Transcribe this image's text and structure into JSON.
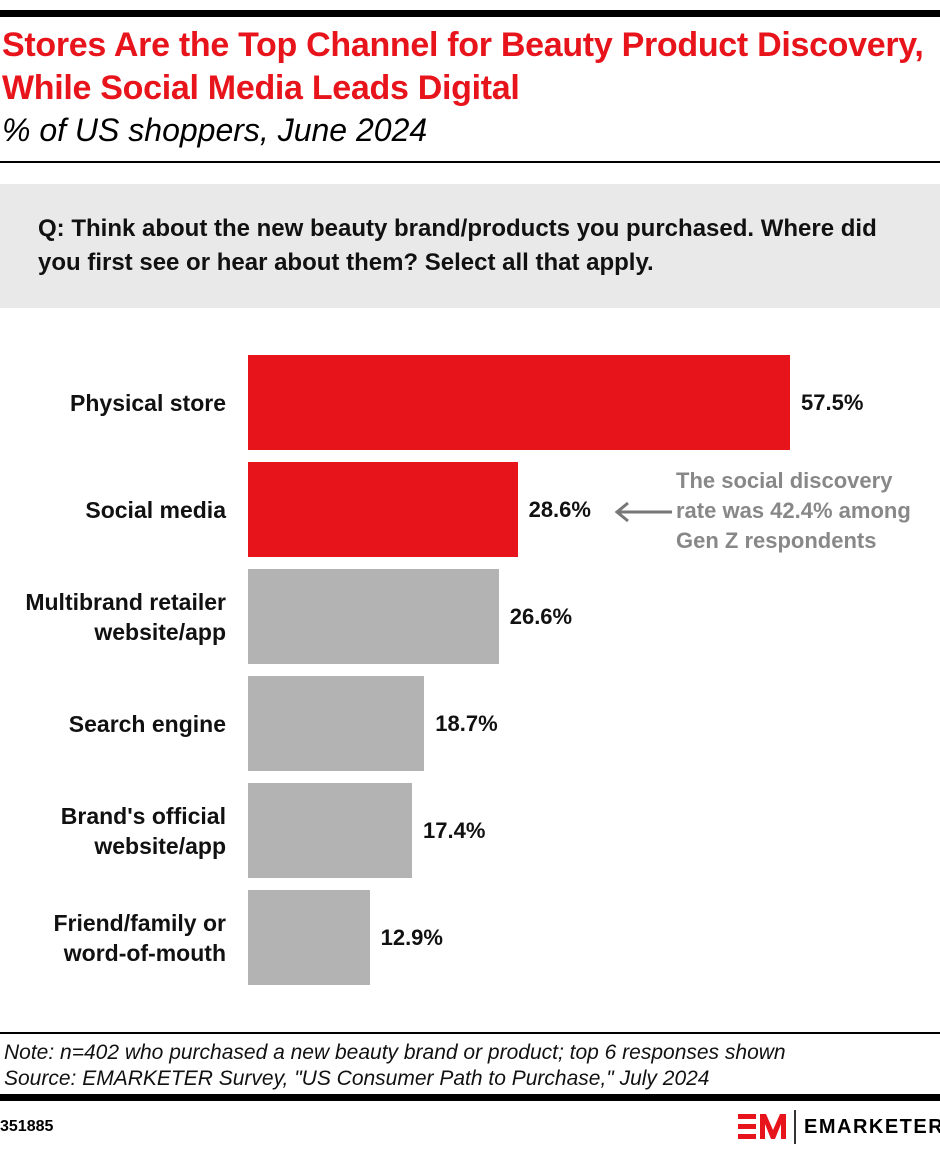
{
  "title": "Stores Are the Top Channel for Beauty Product Discovery, While Social Media Leads Digital",
  "subtitle": "% of US shoppers, June 2024",
  "question": "Q: Think about the new beauty brand/products you purchased. Where did you first see or hear about them? Select all that apply.",
  "chart_data": {
    "type": "bar",
    "orientation": "horizontal",
    "categories": [
      "Physical store",
      "Social media",
      "Multibrand retailer website/app",
      "Search engine",
      "Brand's official website/app",
      "Friend/family or word-of-mouth"
    ],
    "values": [
      57.5,
      28.6,
      26.6,
      18.7,
      17.4,
      12.9
    ],
    "value_labels": [
      "57.5%",
      "28.6%",
      "26.6%",
      "18.7%",
      "17.4%",
      "12.9%"
    ],
    "colors": [
      "#e8141c",
      "#e8141c",
      "#b3b3b3",
      "#b3b3b3",
      "#b3b3b3",
      "#b3b3b3"
    ],
    "annotation": "The social discovery rate was 42.4% among Gen Z respondents",
    "xlim": [
      0,
      57.5
    ],
    "grid": false
  },
  "note": "Note: n=402 who purchased a new beauty brand or product; top 6 responses shown",
  "source": "Source: EMARKETER Survey, \"US Consumer Path to Purchase,\" July 2024",
  "chart_id": "351885",
  "logo": "EMARKETER"
}
